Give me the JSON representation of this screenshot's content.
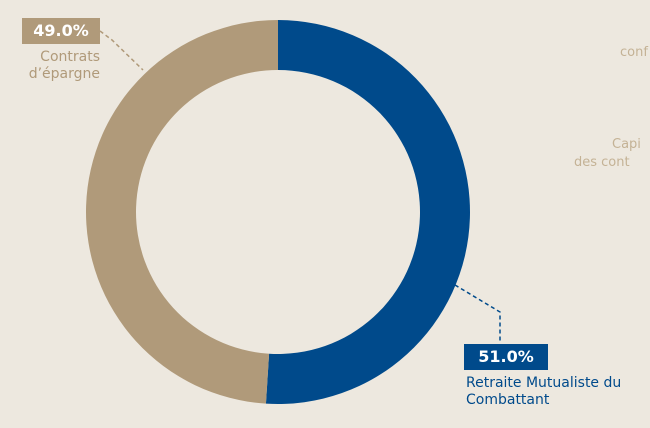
{
  "chart_data": {
    "type": "pie",
    "categories": [
      "Retraite Mutualiste du Combattant",
      "Contrats d’épargne"
    ],
    "values": [
      51,
      49
    ],
    "value_labels": [
      "51.0%",
      "49.0%"
    ],
    "colors": [
      "#004a8b",
      "#b09a7a"
    ],
    "fragments": [
      "conf",
      "Capi",
      "des cont"
    ]
  }
}
